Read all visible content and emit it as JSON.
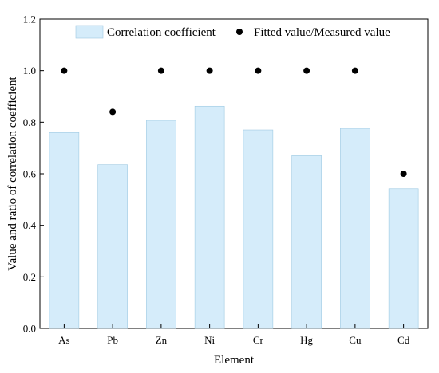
{
  "chart_data": {
    "type": "bar",
    "categories": [
      "As",
      "Pb",
      "Zn",
      "Ni",
      "Cr",
      "Hg",
      "Cu",
      "Cd"
    ],
    "series": [
      {
        "name": "Correlation coefficient",
        "kind": "bar",
        "color": "#d5ecfa",
        "edge_color": "#9ec9e2",
        "values": [
          0.76,
          0.635,
          0.807,
          0.862,
          0.77,
          0.67,
          0.776,
          0.542
        ]
      },
      {
        "name": "Fitted value/Measured value",
        "kind": "scatter",
        "color": "#000000",
        "values": [
          1.0,
          0.84,
          1.0,
          1.0,
          1.0,
          1.0,
          1.0,
          0.6
        ]
      }
    ],
    "xlabel": "Element",
    "ylabel": "Value and ratio of correlation coefficient",
    "ylim": [
      0,
      1.2
    ],
    "yticks": [
      "0.0",
      "0.2",
      "0.4",
      "0.6",
      "0.8",
      "1.0",
      "1.2"
    ],
    "grid": false,
    "legend_position": "top"
  }
}
